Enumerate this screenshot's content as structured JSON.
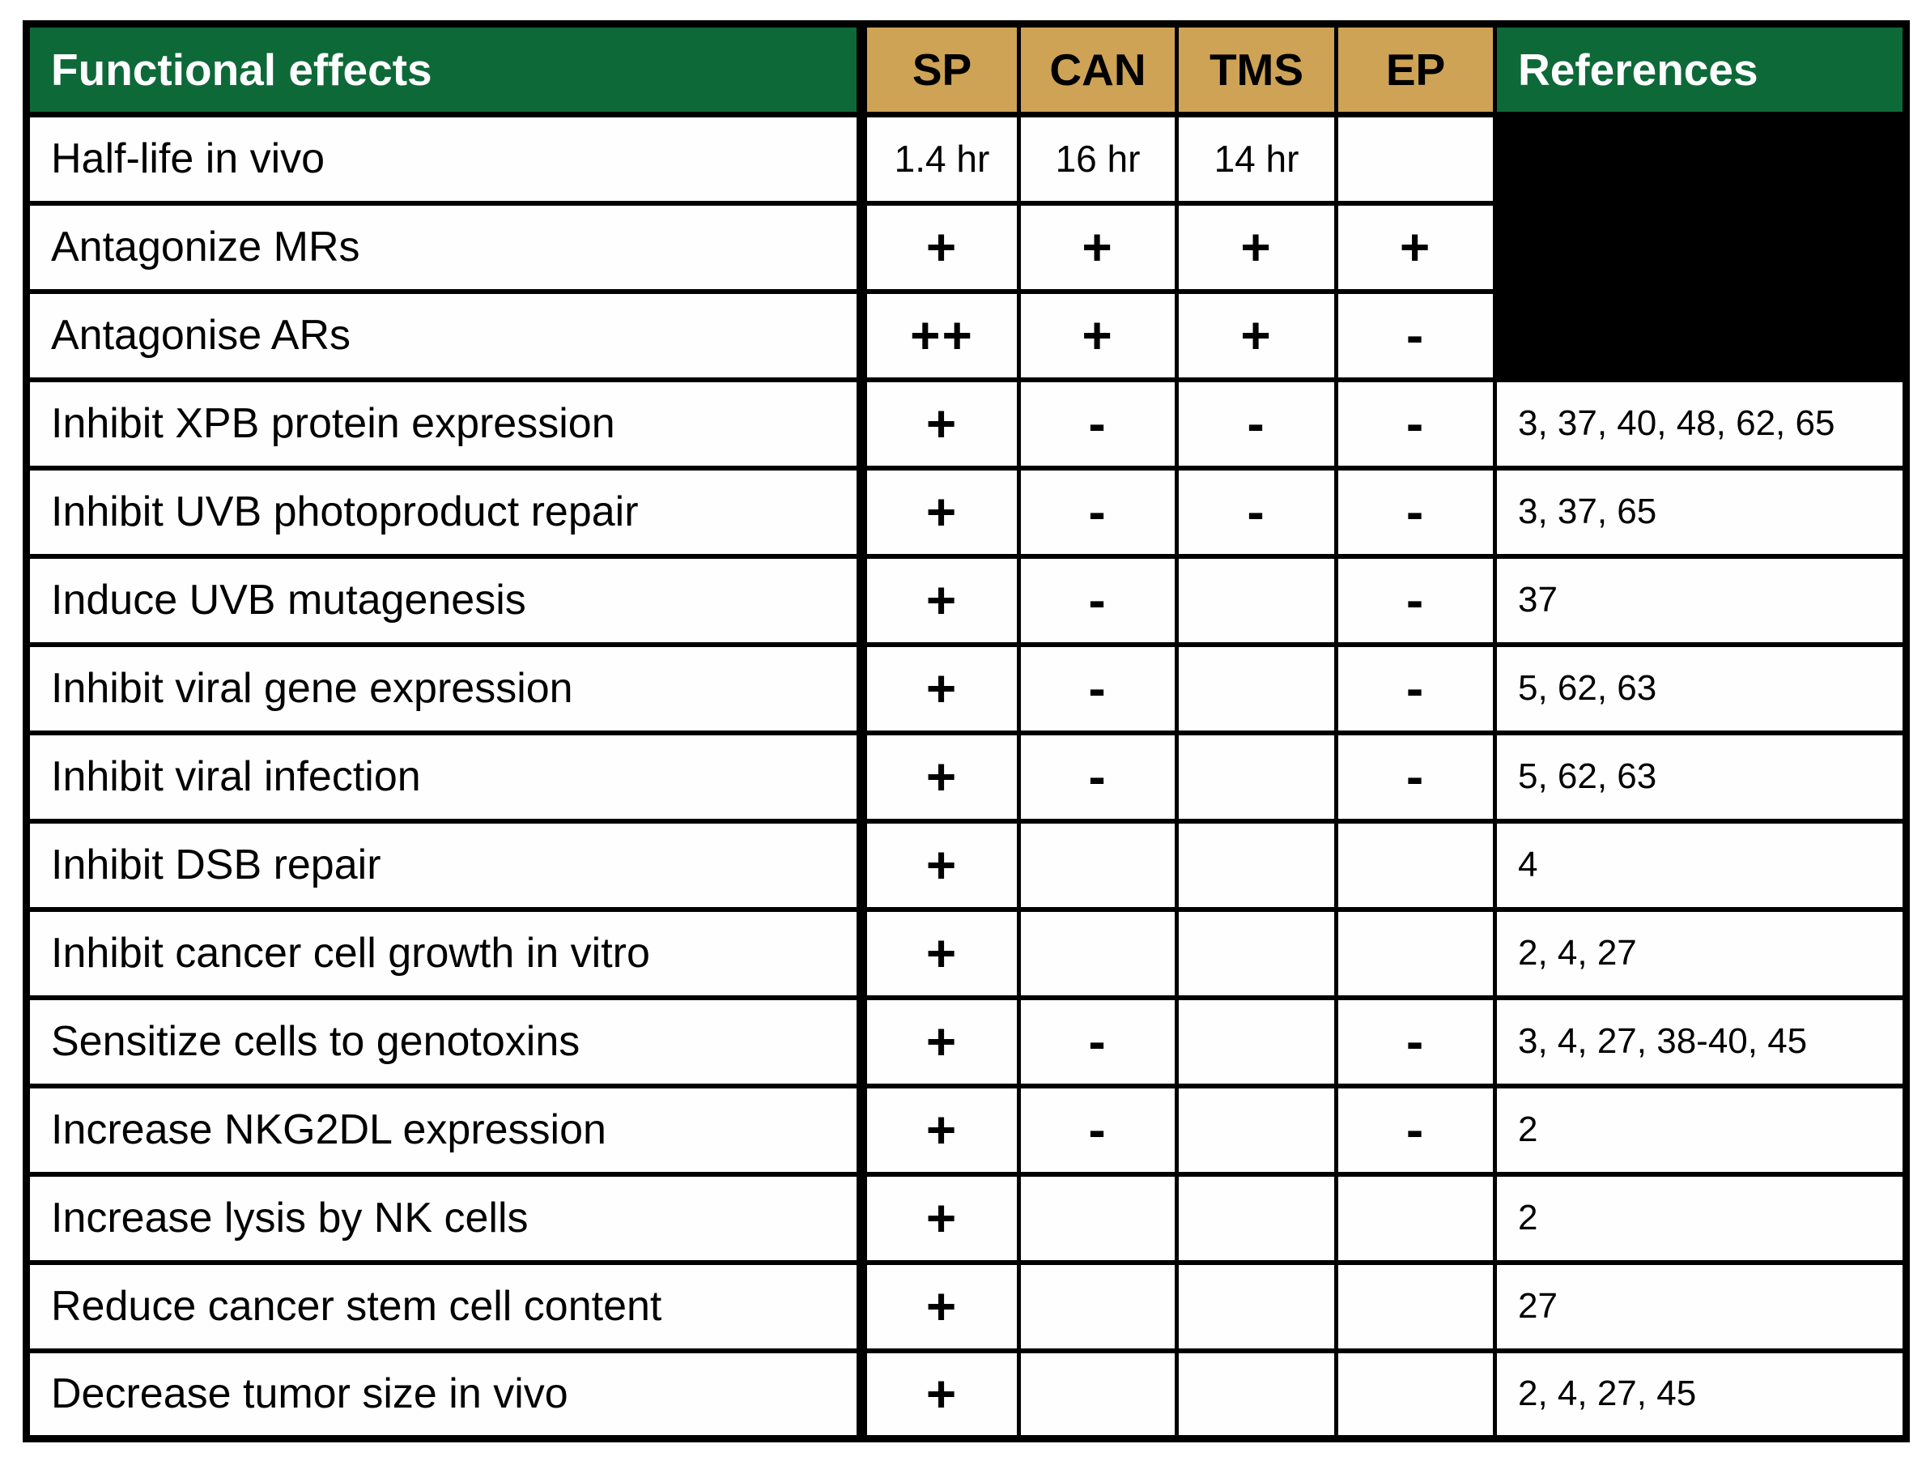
{
  "table": {
    "columns": [
      "Functional effects",
      "SP",
      "CAN",
      "TMS",
      "EP",
      "References"
    ],
    "rows": [
      {
        "label": "Half-life in vivo",
        "sp": "1.4 hr",
        "can": "16 hr",
        "tms": "14 hr",
        "ep": "",
        "refs": "",
        "refs_blacked_out": true
      },
      {
        "label": "Antagonize MRs",
        "sp": "+",
        "can": "+",
        "tms": "+",
        "ep": "+",
        "refs": "",
        "refs_blacked_out": true
      },
      {
        "label": "Antagonise ARs",
        "sp": "++",
        "can": "+",
        "tms": "+",
        "ep": "-",
        "refs": "",
        "refs_blacked_out": true
      },
      {
        "label": "Inhibit XPB protein expression",
        "sp": "+",
        "can": "-",
        "tms": "-",
        "ep": "-",
        "refs": "3, 37, 40, 48, 62, 65",
        "refs_blacked_out": false
      },
      {
        "label": "Inhibit UVB photoproduct repair",
        "sp": "+",
        "can": "-",
        "tms": "-",
        "ep": "-",
        "refs": "3, 37, 65",
        "refs_blacked_out": false
      },
      {
        "label": "Induce UVB mutagenesis",
        "sp": "+",
        "can": "-",
        "tms": "",
        "ep": "-",
        "refs": "37",
        "refs_blacked_out": false
      },
      {
        "label": "Inhibit viral gene expression",
        "sp": "+",
        "can": "-",
        "tms": "",
        "ep": "-",
        "refs": "5, 62, 63",
        "refs_blacked_out": false
      },
      {
        "label": "Inhibit viral infection",
        "sp": "+",
        "can": "-",
        "tms": "",
        "ep": "-",
        "refs": "5, 62, 63",
        "refs_blacked_out": false
      },
      {
        "label": "Inhibit DSB repair",
        "sp": "+",
        "can": "",
        "tms": "",
        "ep": "",
        "refs": "4",
        "refs_blacked_out": false
      },
      {
        "label": "Inhibit cancer cell growth in vitro",
        "sp": "+",
        "can": "",
        "tms": "",
        "ep": "",
        "refs": "2, 4, 27",
        "refs_blacked_out": false
      },
      {
        "label": "Sensitize cells to genotoxins",
        "sp": "+",
        "can": "-",
        "tms": "",
        "ep": "-",
        "refs": "3, 4, 27, 38-40, 45",
        "refs_blacked_out": false
      },
      {
        "label": "Increase NKG2DL expression",
        "sp": "+",
        "can": "-",
        "tms": "",
        "ep": "-",
        "refs": "2",
        "refs_blacked_out": false
      },
      {
        "label": "Increase lysis by NK cells",
        "sp": "+",
        "can": "",
        "tms": "",
        "ep": "",
        "refs": "2",
        "refs_blacked_out": false
      },
      {
        "label": "Reduce cancer stem cell content",
        "sp": "+",
        "can": "",
        "tms": "",
        "ep": "",
        "refs": "27",
        "refs_blacked_out": false
      },
      {
        "label": "Decrease tumor size in vivo",
        "sp": "+",
        "can": "",
        "tms": "",
        "ep": "",
        "refs": "2, 4, 27, 45",
        "refs_blacked_out": false
      }
    ]
  },
  "colors": {
    "header_green": "#0E6938",
    "header_tan": "#CFA355",
    "blacked_out_cell": "#000000",
    "border": "#000000"
  }
}
